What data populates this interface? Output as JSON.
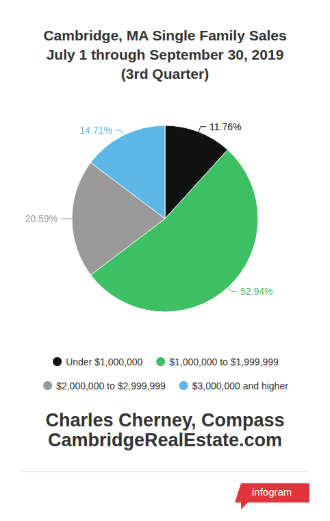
{
  "chart_data": {
    "type": "pie",
    "title": "Cambridge, MA Single Family Sales\nJuly 1 through September 30, 2019\n(3rd Quarter)",
    "categories": [
      "Under $1,000,000",
      "$1,000,000 to $1,999,999",
      "$2,000,000 to $2,999,999",
      "$3,000,000 and higher"
    ],
    "values": [
      11.76,
      52.94,
      20.59,
      14.71
    ],
    "value_labels": [
      "11.76%",
      "52.94%",
      "20.59%",
      "14.71%"
    ],
    "colors": [
      "#111111",
      "#3dbf63",
      "#999999",
      "#5cb6e6"
    ],
    "data_labels": true,
    "legend": "bottom",
    "annotations": [
      "Charles Cherney, Compass",
      "CambridgeRealEstate.com",
      "infogram"
    ]
  }
}
